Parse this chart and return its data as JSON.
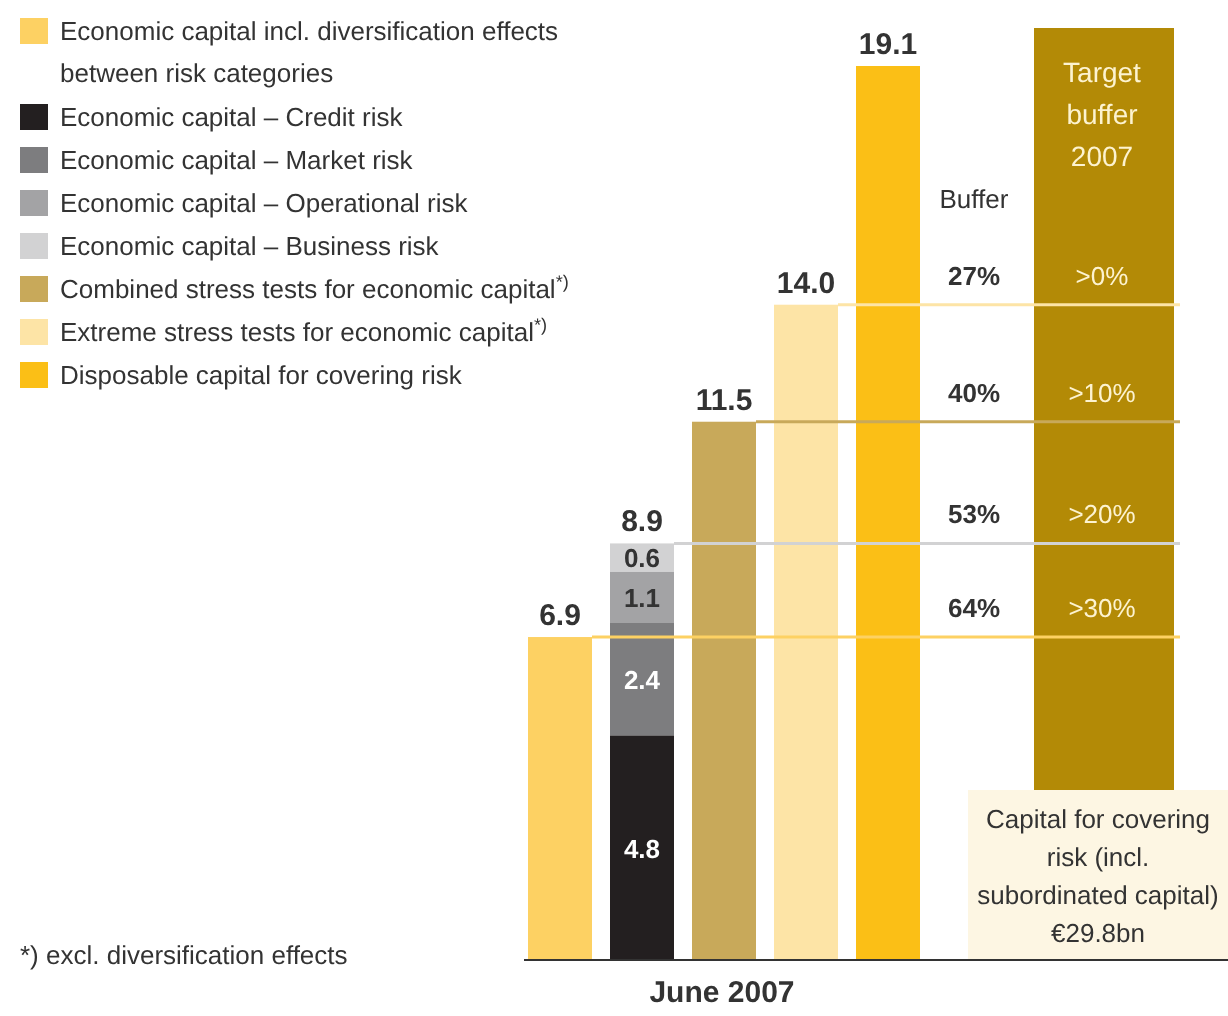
{
  "chart_data": {
    "type": "bar",
    "stacked": true,
    "xlabel": "June 2007",
    "categories": [
      null,
      null,
      null,
      null,
      null
    ],
    "data_labels": true,
    "legend": "top left",
    "totals": [
      null,
      "8.9",
      null,
      null,
      null
    ],
    "series": [
      {
        "name": "Economic capital incl. diversification effects between risk categories",
        "color": "#fdd163",
        "values": [
          6.9,
          null,
          null,
          null,
          null
        ],
        "value_labels": [
          "6.9",
          null,
          null,
          null,
          null
        ]
      },
      {
        "name": "Economic capital – Credit risk",
        "color": "#231f20",
        "values": [
          null,
          4.8,
          null,
          null,
          null
        ],
        "value_labels": [
          null,
          "4.8",
          null,
          null,
          null
        ]
      },
      {
        "name": "Economic capital – Market risk",
        "color": "#7d7d7f",
        "values": [
          null,
          2.4,
          null,
          null,
          null
        ],
        "value_labels": [
          null,
          "2.4",
          null,
          null,
          null
        ]
      },
      {
        "name": "Economic capital – Operational risk",
        "color": "#a3a3a5",
        "values": [
          null,
          1.1,
          null,
          null,
          null
        ],
        "value_labels": [
          null,
          "1.1",
          null,
          null,
          null
        ]
      },
      {
        "name": "Economic capital – Business risk",
        "color": "#d2d2d3",
        "values": [
          null,
          0.6,
          null,
          null,
          null
        ],
        "value_labels": [
          null,
          "0.6",
          null,
          null,
          null
        ]
      },
      {
        "name": "Combined stress tests for economic capital$^{*)}$",
        "color": "#c8a95a",
        "values": [
          null,
          null,
          11.5,
          null,
          null
        ],
        "value_labels": [
          null,
          null,
          "11.5",
          null,
          null
        ]
      },
      {
        "name": "Extreme stress tests for economic capital$^{*)}$",
        "color": "#fde4a6",
        "values": [
          null,
          null,
          null,
          14.0,
          null
        ],
        "value_labels": [
          null,
          null,
          null,
          "14.0",
          null
        ]
      },
      {
        "name": "Disposable capital for covering risk",
        "color": "#fbbf16",
        "values": [
          null,
          null,
          null,
          null,
          19.1
        ],
        "value_labels": [
          null,
          null,
          null,
          null,
          "19.1"
        ]
      }
    ],
    "ref_lines": [
      {
        "axis": "y",
        "value": 14.0,
        "color": "#fde4a6"
      },
      {
        "axis": "y",
        "value": 11.5,
        "color": "#c8a95a"
      },
      {
        "axis": "y",
        "value": 8.9,
        "color": "#d2d2d3"
      },
      {
        "axis": "y",
        "value": 6.9,
        "color": "#fdd163"
      }
    ],
    "annotations": [
      "Buffer",
      "Target buffer 2007",
      {
        "text": "27%",
        "y": 14.0
      },
      {
        "text": "40%",
        "y": 11.5
      },
      {
        "text": "53%",
        "y": 8.9
      },
      {
        "text": "64%",
        "y": 6.9
      },
      {
        "text": ">0%",
        "y": 14.0
      },
      {
        "text": ">10%",
        "y": 11.5
      },
      {
        "text": ">20%",
        "y": 8.9
      },
      {
        "text": ">30%",
        "y": 6.9
      },
      "Capital for covering risk (incl. subordinated capital) €29.8bn",
      "*) excl. diversification effects"
    ]
  }
}
